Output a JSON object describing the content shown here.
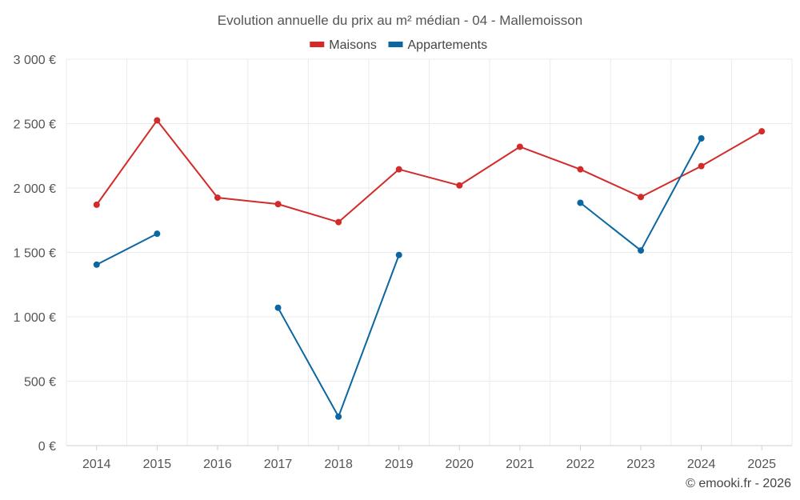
{
  "chart_data": {
    "type": "line",
    "title": "Evolution annuelle du prix au m² médian - 04 - Mallemoisson",
    "categories": [
      "2014",
      "2015",
      "2016",
      "2017",
      "2018",
      "2019",
      "2020",
      "2021",
      "2022",
      "2023",
      "2024",
      "2025"
    ],
    "ylim": [
      0,
      3000
    ],
    "yticks": [
      0,
      500,
      1000,
      1500,
      2000,
      2500,
      3000
    ],
    "ytick_labels": [
      "0 €",
      "500 €",
      "1 000 €",
      "1 500 €",
      "2 000 €",
      "2 500 €",
      "3 000 €"
    ],
    "grid": true,
    "legend_position": "top-center",
    "series": [
      {
        "name": "Maisons",
        "color": "#d32a2a",
        "values": [
          1870,
          2525,
          1925,
          1875,
          1735,
          2145,
          2020,
          2320,
          2145,
          1930,
          2170,
          2440
        ]
      },
      {
        "name": "Appartements",
        "color": "#0b66a1",
        "values": [
          1405,
          1645,
          null,
          1070,
          225,
          1480,
          null,
          null,
          1885,
          1515,
          2385,
          null
        ]
      }
    ],
    "credit": "© emooki.fr - 2026"
  }
}
